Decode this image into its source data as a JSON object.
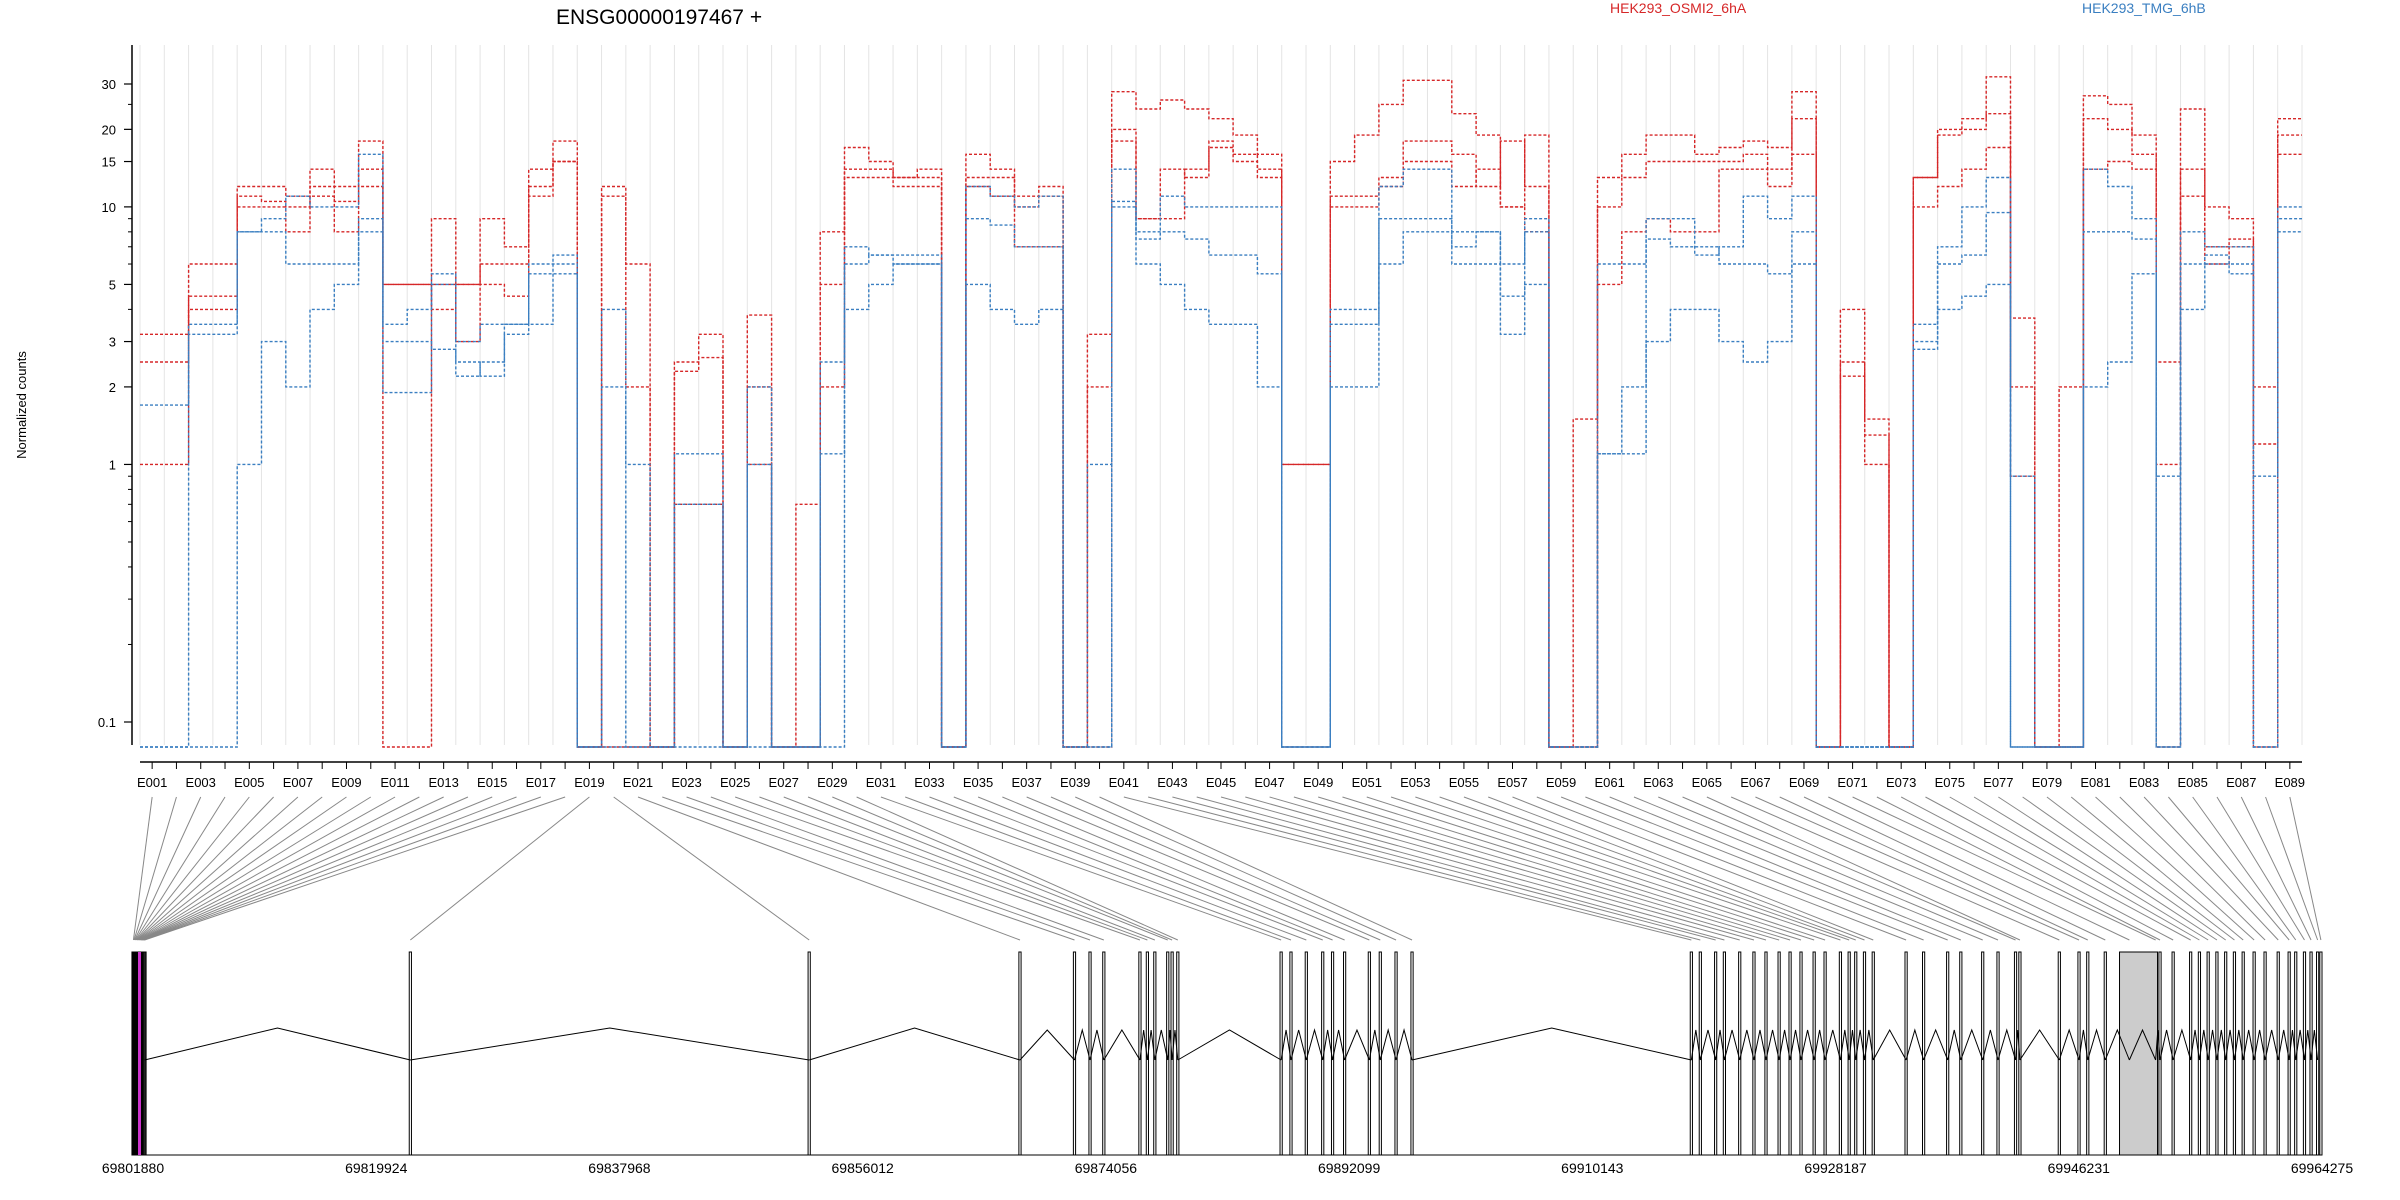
{
  "chart_data": {
    "type": "line",
    "title": "ENSG00000197467 +",
    "ylabel": "Normalized counts",
    "y_scale": "log",
    "ylim": [
      0.08,
      40
    ],
    "y_ticks": [
      0.1,
      1,
      2,
      3,
      5,
      10,
      15,
      20,
      30
    ],
    "y_tick_labels": [
      "0.1",
      "1",
      "2",
      "3",
      "5",
      "10",
      "15",
      "20",
      "30"
    ],
    "grid": true,
    "categories": [
      "E001",
      "E002",
      "E003",
      "E004",
      "E005",
      "E006",
      "E007",
      "E008",
      "E009",
      "E010",
      "E011",
      "E012",
      "E013",
      "E014",
      "E015",
      "E016",
      "E017",
      "E018",
      "E019",
      "E020",
      "E021",
      "E022",
      "E023",
      "E024",
      "E025",
      "E026",
      "E027",
      "E028",
      "E029",
      "E030",
      "E031",
      "E032",
      "E033",
      "E034",
      "E035",
      "E036",
      "E037",
      "E038",
      "E039",
      "E040",
      "E041",
      "E042",
      "E043",
      "E044",
      "E045",
      "E046",
      "E047",
      "E048",
      "E049",
      "E050",
      "E051",
      "E052",
      "E053",
      "E054",
      "E055",
      "E056",
      "E057",
      "E058",
      "E059",
      "E060",
      "E061",
      "E062",
      "E063",
      "E064",
      "E065",
      "E066",
      "E067",
      "E068",
      "E069",
      "E070",
      "E071",
      "E072",
      "E073",
      "E074",
      "E075",
      "E076",
      "E077",
      "E078",
      "E079",
      "E080",
      "E081",
      "E082",
      "E083",
      "E084",
      "E085",
      "E086",
      "E087",
      "E088",
      "E089"
    ],
    "x_tick_labels": [
      "E001",
      "E003",
      "E005",
      "E007",
      "E009",
      "E011",
      "E013",
      "E015",
      "E017",
      "E019",
      "E021",
      "E023",
      "E025",
      "E027",
      "E029",
      "E031",
      "E033",
      "E035",
      "E037",
      "E039",
      "E041",
      "E043",
      "E045",
      "E047",
      "E049",
      "E051",
      "E053",
      "E055",
      "E057",
      "E059",
      "E061",
      "E063",
      "E065",
      "E067",
      "E069",
      "E071",
      "E073",
      "E075",
      "E077",
      "E079",
      "E081",
      "E083",
      "E085",
      "E087",
      "E089"
    ],
    "legend": [
      {
        "name": "HEK293_OSMI2_6hA",
        "color": "#d62728"
      },
      {
        "name": "HEK293_TMG_6hB",
        "color": "#3a7fc1"
      }
    ],
    "series": [
      {
        "group": "HEK293_OSMI2_6hA",
        "color": "#d62728",
        "values": [
          3.2,
          3.2,
          6.0,
          6.0,
          12.0,
          12.0,
          11.0,
          14.0,
          12.0,
          18.0,
          0.08,
          0.08,
          9.0,
          5.0,
          9.0,
          7.0,
          12.0,
          18.0,
          0.08,
          12.0,
          6.0,
          0.08,
          2.5,
          3.2,
          0.08,
          3.8,
          0.08,
          0.7,
          8.0,
          17.0,
          15.0,
          13.0,
          14.0,
          0.08,
          16.0,
          14.0,
          11.0,
          12.0,
          0.08,
          3.2,
          28.0,
          24.0,
          26.0,
          24.0,
          22.0,
          19.0,
          16.0,
          1.0,
          1.0,
          15.0,
          19.0,
          25.0,
          31.0,
          31.0,
          23.0,
          19.0,
          10.0,
          19.0,
          0.08,
          0.08,
          13.0,
          16.0,
          19.0,
          19.0,
          16.0,
          17.0,
          18.0,
          17.0,
          28.0,
          0.08,
          4.0,
          1.5,
          0.08,
          13.0,
          19.0,
          22.0,
          32.0,
          3.7,
          0.08,
          2.0,
          27.0,
          25.0,
          19.0,
          0.08,
          24.0,
          6.0,
          7.0,
          0.08,
          22.0
        ]
      },
      {
        "group": "HEK293_OSMI2_6hA",
        "color": "#d62728",
        "values": [
          2.5,
          2.5,
          4.5,
          4.5,
          11.0,
          10.5,
          10.0,
          12.0,
          10.5,
          14.0,
          5.0,
          5.0,
          4.0,
          5.0,
          6.0,
          6.0,
          11.0,
          15.0,
          0.08,
          11.0,
          2.0,
          0.08,
          2.3,
          2.6,
          0.08,
          2.0,
          0.08,
          0.08,
          5.0,
          14.0,
          14.0,
          12.0,
          12.0,
          0.08,
          13.0,
          13.0,
          10.0,
          11.0,
          0.08,
          2.0,
          20.0,
          9.0,
          9.0,
          14.0,
          18.0,
          16.0,
          13.0,
          1.0,
          1.0,
          11.0,
          11.0,
          12.0,
          18.0,
          18.0,
          16.0,
          12.0,
          18.0,
          12.0,
          0.08,
          1.5,
          10.0,
          13.0,
          15.0,
          15.0,
          15.0,
          15.0,
          16.0,
          14.0,
          22.0,
          0.08,
          2.5,
          1.3,
          0.08,
          13.0,
          20.0,
          20.0,
          23.0,
          2.0,
          0.08,
          0.08,
          22.0,
          20.0,
          16.0,
          2.5,
          14.0,
          10.0,
          9.0,
          2.0,
          19.0
        ]
      },
      {
        "group": "HEK293_OSMI2_6hA",
        "color": "#d62728",
        "values": [
          1.0,
          1.0,
          4.0,
          4.0,
          10.0,
          10.0,
          8.0,
          11.0,
          8.0,
          12.0,
          5.0,
          5.0,
          5.0,
          3.0,
          5.0,
          4.5,
          14.0,
          15.0,
          0.08,
          0.08,
          0.08,
          0.08,
          0.7,
          0.7,
          0.08,
          1.0,
          0.08,
          0.08,
          2.0,
          13.0,
          13.0,
          13.0,
          13.0,
          0.08,
          12.0,
          11.0,
          7.0,
          7.0,
          0.08,
          0.08,
          18.0,
          9.0,
          14.0,
          13.0,
          17.0,
          15.0,
          14.0,
          0.08,
          0.08,
          10.0,
          10.0,
          13.0,
          15.0,
          15.0,
          12.0,
          14.0,
          10.0,
          8.0,
          0.08,
          0.08,
          5.0,
          8.0,
          9.0,
          8.0,
          8.0,
          14.0,
          14.0,
          12.0,
          16.0,
          0.08,
          2.2,
          1.0,
          0.08,
          10.0,
          12.0,
          14.0,
          17.0,
          0.9,
          0.08,
          0.08,
          14.0,
          15.0,
          14.0,
          1.0,
          11.0,
          7.0,
          7.5,
          1.2,
          16.0
        ]
      },
      {
        "group": "HEK293_TMG_6hB",
        "color": "#3a7fc1",
        "values": [
          1.7,
          1.7,
          3.5,
          3.5,
          8.0,
          9.0,
          11.0,
          10.0,
          10.0,
          16.0,
          1.9,
          1.9,
          5.5,
          3.0,
          3.5,
          3.5,
          3.5,
          6.5,
          0.08,
          4.0,
          0.08,
          0.08,
          1.1,
          1.1,
          0.08,
          2.0,
          0.08,
          0.08,
          1.1,
          6.0,
          6.5,
          6.0,
          6.0,
          0.08,
          12.0,
          11.0,
          10.0,
          11.0,
          0.08,
          0.08,
          14.0,
          7.5,
          11.0,
          10.0,
          10.0,
          10.0,
          10.0,
          0.08,
          0.08,
          2.0,
          2.0,
          12.0,
          14.0,
          14.0,
          7.0,
          8.0,
          6.0,
          8.0,
          0.08,
          0.08,
          1.1,
          1.1,
          9.0,
          9.0,
          6.5,
          7.0,
          11.0,
          9.0,
          11.0,
          0.08,
          0.08,
          0.08,
          0.08,
          3.0,
          7.0,
          10.0,
          13.0,
          0.9,
          0.08,
          0.08,
          14.0,
          12.0,
          9.0,
          0.9,
          8.0,
          7.0,
          7.0,
          0.9,
          10.0
        ]
      },
      {
        "group": "HEK293_TMG_6hB",
        "color": "#3a7fc1",
        "values": [
          0.08,
          0.08,
          0.08,
          0.08,
          1.0,
          3.0,
          2.0,
          4.0,
          5.0,
          9.0,
          3.5,
          4.0,
          5.0,
          2.5,
          2.2,
          3.2,
          6.0,
          6.0,
          0.08,
          0.08,
          0.08,
          0.08,
          0.08,
          0.08,
          0.08,
          0.08,
          0.08,
          0.08,
          0.08,
          4.0,
          5.0,
          6.0,
          6.0,
          0.08,
          5.0,
          4.0,
          3.5,
          4.0,
          0.08,
          0.08,
          10.5,
          6.0,
          5.0,
          4.0,
          3.5,
          3.5,
          2.0,
          0.08,
          0.08,
          4.0,
          4.0,
          6.0,
          8.0,
          8.0,
          6.0,
          6.0,
          3.2,
          5.0,
          0.08,
          0.08,
          1.1,
          2.0,
          3.0,
          4.0,
          4.0,
          3.0,
          2.5,
          3.0,
          6.0,
          0.08,
          0.08,
          0.08,
          0.08,
          2.8,
          4.0,
          4.5,
          5.0,
          0.08,
          0.08,
          0.08,
          2.0,
          2.5,
          5.5,
          0.08,
          4.0,
          6.0,
          5.5,
          0.08,
          9.0
        ]
      },
      {
        "group": "HEK293_TMG_6hB",
        "color": "#3a7fc1",
        "values": [
          0.08,
          0.08,
          3.2,
          3.2,
          8.0,
          8.0,
          6.0,
          6.0,
          6.0,
          8.0,
          3.0,
          3.0,
          2.8,
          2.2,
          2.5,
          3.5,
          5.5,
          5.5,
          0.08,
          2.0,
          1.0,
          0.08,
          0.7,
          0.7,
          0.08,
          1.0,
          0.08,
          0.08,
          2.5,
          7.0,
          6.5,
          6.5,
          6.5,
          0.08,
          9.0,
          8.5,
          7.0,
          7.0,
          0.08,
          1.0,
          10.0,
          8.0,
          8.0,
          7.5,
          6.5,
          6.5,
          5.5,
          0.08,
          0.08,
          3.5,
          3.5,
          9.0,
          9.0,
          9.0,
          8.0,
          8.0,
          4.5,
          9.0,
          0.08,
          0.08,
          6.0,
          6.0,
          7.5,
          7.0,
          7.0,
          6.0,
          6.0,
          5.5,
          8.0,
          0.08,
          0.08,
          0.08,
          0.08,
          3.5,
          6.0,
          6.5,
          9.5,
          0.08,
          0.08,
          0.08,
          8.0,
          8.0,
          7.5,
          0.08,
          6.0,
          6.5,
          6.0,
          0.08,
          8.0
        ]
      }
    ],
    "gene_track": {
      "coordinate_labels": [
        "69801880",
        "69819924",
        "69837968",
        "69856012",
        "69874056",
        "69892099",
        "69910143",
        "69928187",
        "69946231",
        "69964275"
      ]
    }
  }
}
